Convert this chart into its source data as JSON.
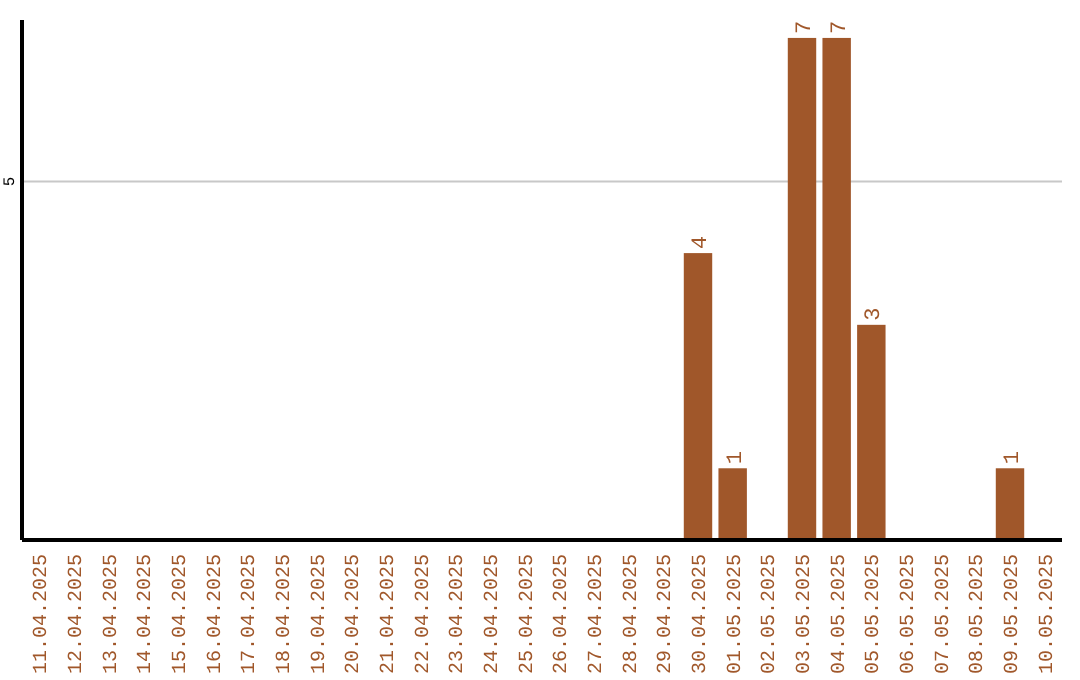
{
  "chart_data": {
    "type": "bar",
    "categories": [
      "11.04.2025",
      "12.04.2025",
      "13.04.2025",
      "14.04.2025",
      "15.04.2025",
      "16.04.2025",
      "17.04.2025",
      "18.04.2025",
      "19.04.2025",
      "20.04.2025",
      "21.04.2025",
      "22.04.2025",
      "23.04.2025",
      "24.04.2025",
      "25.04.2025",
      "26.04.2025",
      "27.04.2025",
      "28.04.2025",
      "29.04.2025",
      "30.04.2025",
      "01.05.2025",
      "02.05.2025",
      "03.05.2025",
      "04.05.2025",
      "05.05.2025",
      "06.05.2025",
      "07.05.2025",
      "08.05.2025",
      "09.05.2025",
      "10.05.2025"
    ],
    "values": [
      null,
      null,
      null,
      null,
      null,
      null,
      null,
      null,
      null,
      null,
      null,
      null,
      null,
      null,
      null,
      null,
      null,
      null,
      null,
      4,
      1,
      null,
      7,
      7,
      3,
      null,
      null,
      null,
      1,
      null
    ],
    "data_labels": true,
    "color": "#a0572a",
    "ylim": [
      0,
      7.25
    ],
    "yticks": [
      {
        "value": 0,
        "label": null
      },
      5
    ],
    "grid": "y"
  }
}
